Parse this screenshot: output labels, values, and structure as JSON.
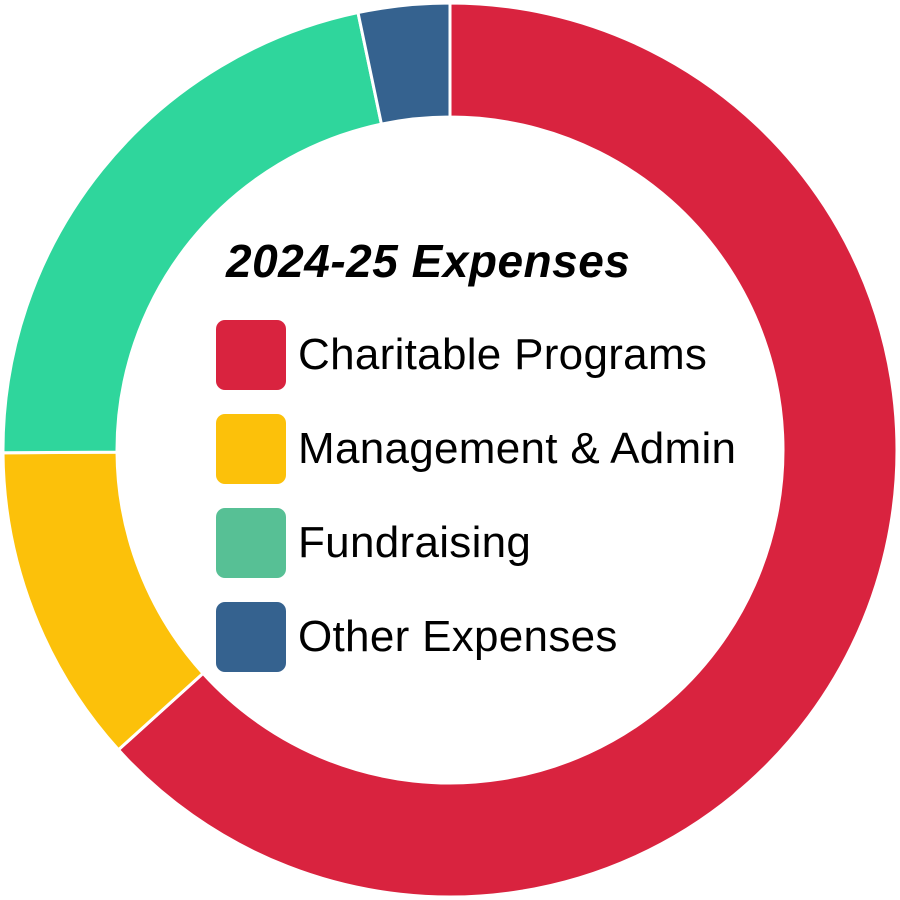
{
  "chart_data": {
    "type": "pie",
    "style": "donut",
    "title": "2024-25 Expenses",
    "categories": [
      "Charitable Programs",
      "Management & Admin",
      "Fundraising",
      "Other Expenses"
    ],
    "values": [
      63.3,
      11.6,
      21.8,
      3.3
    ],
    "unit": "%",
    "colors": [
      "#d9233f",
      "#fcc10a",
      "#2fd69c",
      "#35628f"
    ],
    "legend": {
      "placement": "center",
      "entries": [
        {
          "label": "Charitable Programs",
          "color": "#d9233f"
        },
        {
          "label": "Management & Admin",
          "color": "#fcc10a"
        },
        {
          "label": "Fundraising",
          "color": "#57c095"
        },
        {
          "label": "Other Expenses",
          "color": "#35628f"
        }
      ]
    }
  }
}
